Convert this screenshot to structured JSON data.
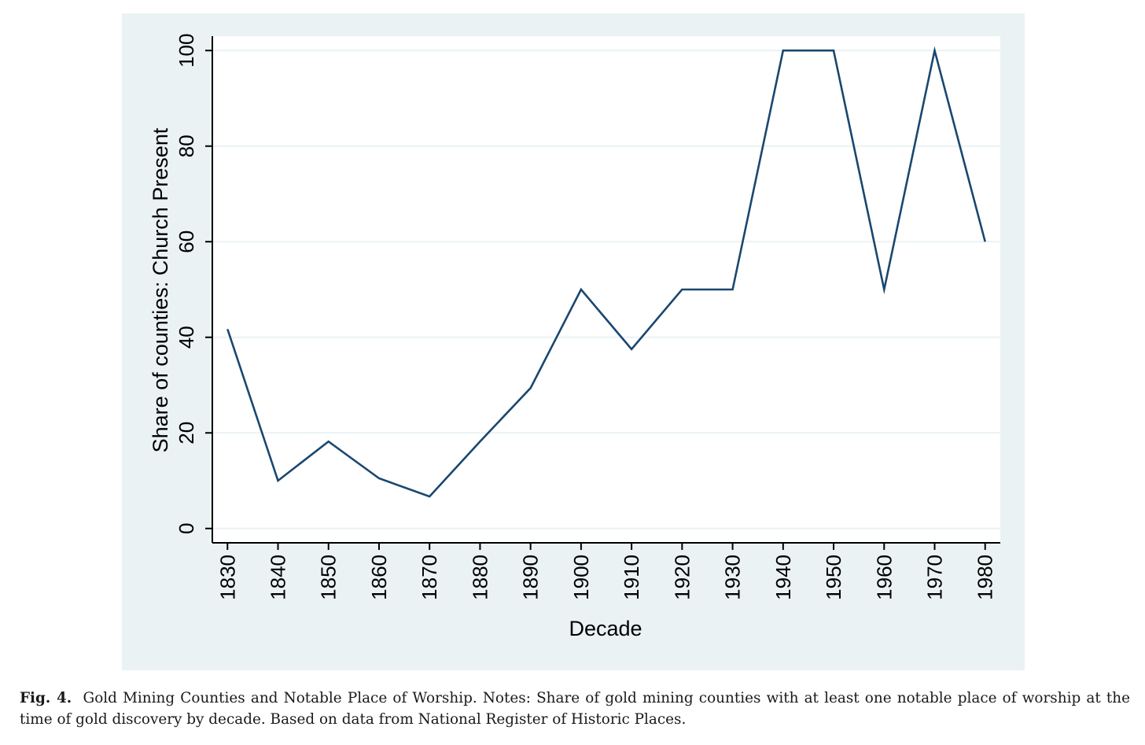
{
  "chart_data": {
    "type": "line",
    "xlabel": "Decade",
    "ylabel": "Share of counties: Church Present",
    "x": [
      1830,
      1840,
      1850,
      1860,
      1870,
      1880,
      1890,
      1900,
      1910,
      1920,
      1930,
      1940,
      1950,
      1960,
      1970,
      1980
    ],
    "series": [
      {
        "values": [
          41.7,
          10,
          18.2,
          10.5,
          6.7,
          18.2,
          29.4,
          50,
          37.5,
          50,
          50,
          100,
          100,
          50,
          100,
          60
        ],
        "color": "#1a476f"
      }
    ],
    "xticks": [
      "1830",
      "1840",
      "1850",
      "1860",
      "1870",
      "1880",
      "1890",
      "1900",
      "1910",
      "1920",
      "1930",
      "1940",
      "1950",
      "1960",
      "1970",
      "1980"
    ],
    "yticks": [
      0,
      20,
      40,
      60,
      80,
      100
    ],
    "xlim": [
      1827,
      1983
    ],
    "ylim": [
      -3,
      103
    ],
    "grid": true,
    "colors": {
      "plot_background": "#eaf2f3",
      "plot_region": "#ffffff",
      "grid": "#eaf2f3",
      "axis": "#000000"
    }
  },
  "caption": {
    "label": "Fig. 4.",
    "text": "Gold Mining Counties and Notable Place of Worship. Notes: Share of gold mining counties with at least one notable place of worship at the time of gold discovery by decade. Based on data from National Register of Historic Places."
  }
}
